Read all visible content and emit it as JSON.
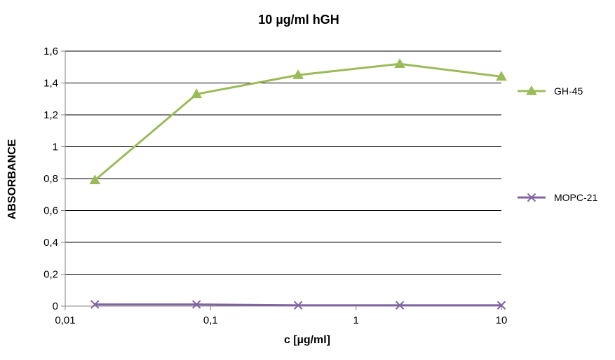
{
  "chart_data": {
    "type": "line",
    "title": "10 µg/ml hGH",
    "xlabel": "c [µg/ml]",
    "ylabel": "ABSORBANCE",
    "xscale": "log",
    "xlim": [
      0.01,
      10
    ],
    "ylim": [
      0,
      1.6
    ],
    "xticks": [
      0.01,
      0.1,
      1,
      10
    ],
    "xtick_labels": [
      "0,01",
      "0,1",
      "1",
      "10"
    ],
    "yticks": [
      0,
      0.2,
      0.4,
      0.6,
      0.8,
      1.0,
      1.2,
      1.4,
      1.6
    ],
    "ytick_labels": [
      "0",
      "0,2",
      "0,4",
      "0,6",
      "0,8",
      "1",
      "1,2",
      "1,4",
      "1,6"
    ],
    "grid": "horizontal",
    "legend_position": "right",
    "series": [
      {
        "name": "GH-45",
        "color": "#9bbb59",
        "marker": "triangle",
        "x": [
          0.016,
          0.08,
          0.4,
          2,
          10
        ],
        "y": [
          0.79,
          1.33,
          1.45,
          1.52,
          1.44
        ]
      },
      {
        "name": "MOPC-21",
        "color": "#8064a2",
        "marker": "x",
        "x": [
          0.016,
          0.08,
          0.4,
          2,
          10
        ],
        "y": [
          0.01,
          0.01,
          0.005,
          0.005,
          0.005
        ]
      }
    ]
  }
}
